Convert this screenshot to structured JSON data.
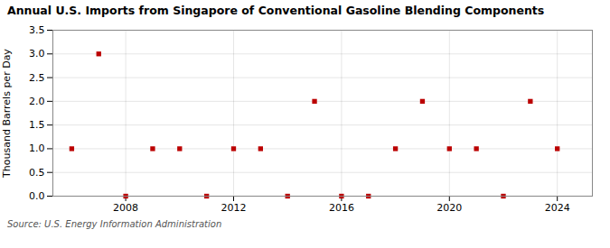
{
  "chart_data": {
    "type": "scatter",
    "title": "Annual U.S. Imports from Singapore of Conventional Gasoline Blending Components",
    "ylabel": "Thousand Barrels per Day",
    "source": "Source: U.S. Energy Information Administration",
    "x": [
      2006,
      2007,
      2008,
      2009,
      2010,
      2011,
      2012,
      2013,
      2014,
      2015,
      2016,
      2017,
      2018,
      2019,
      2020,
      2021,
      2022,
      2023,
      2024
    ],
    "values": [
      1.0,
      3.0,
      0.0,
      1.0,
      1.0,
      0.0,
      1.0,
      1.0,
      0.0,
      2.0,
      0.0,
      0.0,
      1.0,
      2.0,
      1.0,
      1.0,
      0.0,
      2.0,
      1.0
    ],
    "color": "#bb0000",
    "marker": "square",
    "xlim": [
      2005.3,
      2025.3
    ],
    "ylim": [
      0.0,
      3.5
    ],
    "xticks": [
      2008,
      2012,
      2016,
      2020,
      2024
    ],
    "yticks": [
      {
        "value": 0.0,
        "label": "0.0"
      },
      0.5,
      {
        "value": 1.0,
        "label": "1.0"
      },
      1.5,
      {
        "value": 2.0,
        "label": "2.0"
      },
      2.5,
      {
        "value": 3.0,
        "label": "3.0"
      },
      3.5
    ],
    "grid": true
  }
}
